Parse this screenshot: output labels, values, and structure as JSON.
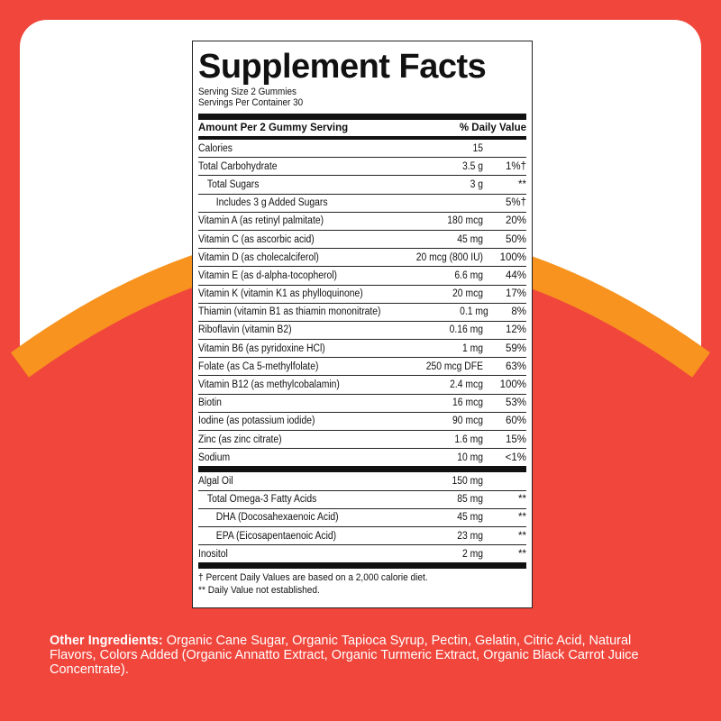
{
  "colors": {
    "background_red": "#f0463c",
    "arc_orange": "#f7931e",
    "card": "#ffffff"
  },
  "label": {
    "title": "Supplement Facts",
    "serving_size": "Serving Size 2 Gummies",
    "servings_per_container": "Servings Per Container 30",
    "amount_header": "Amount Per 2 Gummy Serving",
    "dv_header": "% Daily Value",
    "section1": [
      {
        "name": "Calories",
        "amount": "15",
        "dv": "",
        "indent": 0
      },
      {
        "name": "Total Carbohydrate",
        "amount": "3.5 g",
        "dv": "1%†",
        "indent": 0
      },
      {
        "name": "Total Sugars",
        "amount": "3 g",
        "dv": "**",
        "indent": 1
      },
      {
        "name": "Includes 3 g Added Sugars",
        "amount": "",
        "dv": "5%†",
        "indent": 2
      },
      {
        "name": "Vitamin A (as retinyl palmitate)",
        "amount": "180 mcg",
        "dv": "20%",
        "indent": 0
      },
      {
        "name": "Vitamin C (as ascorbic acid)",
        "amount": "45 mg",
        "dv": "50%",
        "indent": 0
      },
      {
        "name": "Vitamin D (as cholecalciferol)",
        "amount": "20 mcg (800 IU)",
        "dv": "100%",
        "indent": 0
      },
      {
        "name": "Vitamin E (as d-alpha-tocopherol)",
        "amount": "6.6 mg",
        "dv": "44%",
        "indent": 0
      },
      {
        "name": "Vitamin K (vitamin K1 as phylloquinone)",
        "amount": "20 mcg",
        "dv": "17%",
        "indent": 0
      },
      {
        "name": "Thiamin (vitamin B1 as thiamin mononitrate)",
        "amount": "0.1 mg",
        "dv": "8%",
        "indent": 0
      },
      {
        "name": "Riboflavin (vitamin B2)",
        "amount": "0.16 mg",
        "dv": "12%",
        "indent": 0
      },
      {
        "name": "Vitamin B6 (as pyridoxine HCl)",
        "amount": "1 mg",
        "dv": "59%",
        "indent": 0
      },
      {
        "name": "Folate (as Ca 5-methylfolate)",
        "amount": "250 mcg DFE",
        "dv": "63%",
        "indent": 0
      },
      {
        "name": "Vitamin B12 (as methylcobalamin)",
        "amount": "2.4 mcg",
        "dv": "100%",
        "indent": 0
      },
      {
        "name": "Biotin",
        "amount": "16 mcg",
        "dv": "53%",
        "indent": 0
      },
      {
        "name": "Iodine (as potassium iodide)",
        "amount": "90 mcg",
        "dv": "60%",
        "indent": 0
      },
      {
        "name": "Zinc (as zinc citrate)",
        "amount": "1.6 mg",
        "dv": "15%",
        "indent": 0
      },
      {
        "name": "Sodium",
        "amount": "10 mg",
        "dv": "<1%",
        "indent": 0
      }
    ],
    "section2": [
      {
        "name": "Algal Oil",
        "amount": "150 mg",
        "dv": "",
        "indent": 0
      },
      {
        "name": "Total Omega-3 Fatty Acids",
        "amount": "85 mg",
        "dv": "**",
        "indent": 1
      },
      {
        "name": "DHA (Docosahexaenoic Acid)",
        "amount": "45 mg",
        "dv": "**",
        "indent": 2
      },
      {
        "name": "EPA (Eicosapentaenoic Acid)",
        "amount": "23 mg",
        "dv": "**",
        "indent": 2
      },
      {
        "name": "Inositol",
        "amount": "2 mg",
        "dv": "**",
        "indent": 0
      }
    ],
    "footnote1": "† Percent Daily Values are based on a 2,000 calorie diet.",
    "footnote2": "** Daily Value not established."
  },
  "ingredients": {
    "label": "Other Ingredients:",
    "text": " Organic Cane Sugar, Organic Tapioca Syrup, Pectin, Gelatin, Citric Acid, Natural Flavors, Colors Added (Organic Annatto Extract, Organic Turmeric Extract, Organic Black Carrot Juice Concentrate)."
  }
}
